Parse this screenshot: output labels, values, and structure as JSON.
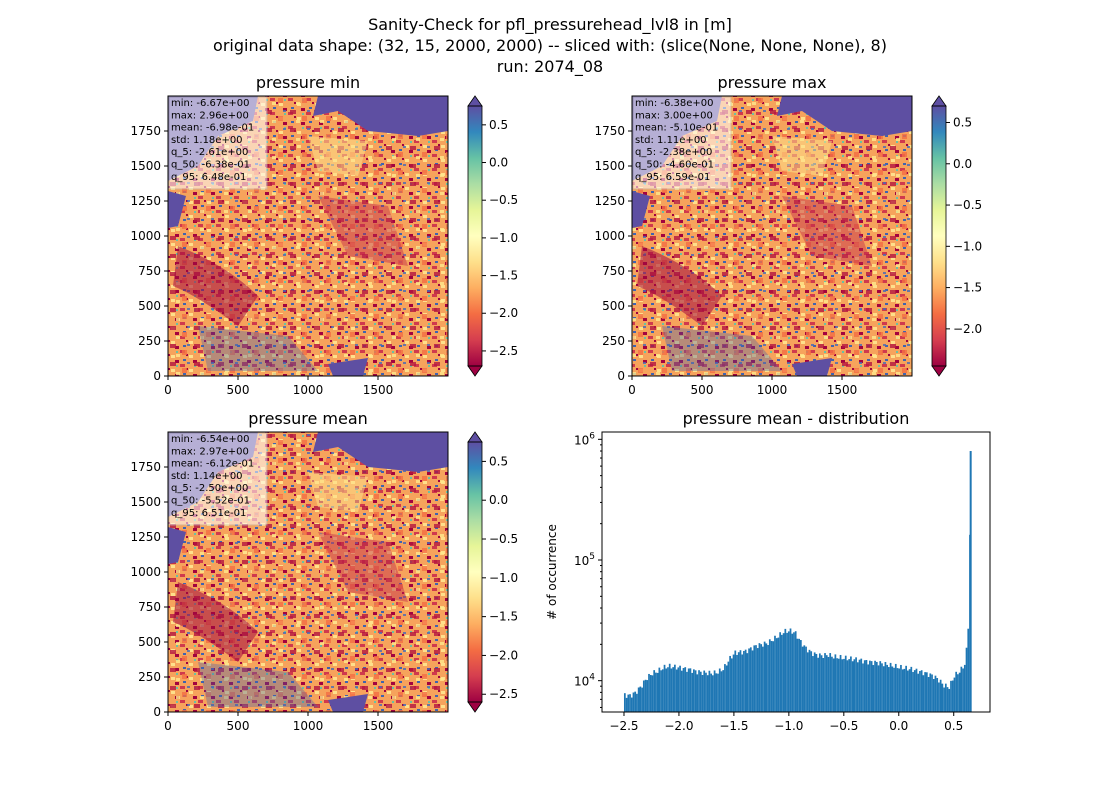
{
  "figure": {
    "title_line1": "Sanity-Check for pfl_pressurehead_lvl8 in [m]",
    "title_line2": "original data shape: (32, 15, 2000, 2000) -- sliced with: (slice(None, None, None), 8)",
    "title_line3": "run: 2074_08"
  },
  "chart_data": [
    {
      "type": "heatmap",
      "title": "pressure min",
      "xlim": [
        0,
        2000
      ],
      "ylim": [
        0,
        2000
      ],
      "xticks": [
        0,
        500,
        1000,
        1500
      ],
      "yticks": [
        0,
        250,
        500,
        750,
        1000,
        1250,
        1500,
        1750
      ],
      "colormap": "Spectral",
      "colorbar": {
        "range": [
          -2.7,
          0.75
        ],
        "ticks": [
          0.5,
          0.0,
          -0.5,
          -1.0,
          -1.5,
          -2.0,
          -2.5
        ],
        "tick_labels": [
          "0.5",
          "0.0",
          "−0.5",
          "−1.0",
          "−1.5",
          "−2.0",
          "−2.5"
        ]
      },
      "stats": [
        "min: -6.67e+00",
        "max: 2.96e+00",
        "mean: -6.98e-01",
        "std: 1.18e+00",
        "q_5: -2.61e+00",
        "q_50: -6.38e-01",
        "q_95: 6.48e-01"
      ]
    },
    {
      "type": "heatmap",
      "title": "pressure max",
      "xlim": [
        0,
        2000
      ],
      "ylim": [
        0,
        2000
      ],
      "xticks": [
        0,
        500,
        1000,
        1500
      ],
      "yticks": [
        0,
        250,
        500,
        750,
        1000,
        1250,
        1500,
        1750
      ],
      "colormap": "Spectral",
      "colorbar": {
        "range": [
          -2.45,
          0.7
        ],
        "ticks": [
          0.5,
          0.0,
          -0.5,
          -1.0,
          -1.5,
          -2.0
        ],
        "tick_labels": [
          "0.5",
          "0.0",
          "−0.5",
          "−1.0",
          "−1.5",
          "−2.0"
        ]
      },
      "stats": [
        "min: -6.38e+00",
        "max: 3.00e+00",
        "mean: -5.10e-01",
        "std: 1.11e+00",
        "q_5: -2.38e+00",
        "q_50: -4.60e-01",
        "q_95: 6.59e-01"
      ]
    },
    {
      "type": "heatmap",
      "title": "pressure mean",
      "xlim": [
        0,
        2000
      ],
      "ylim": [
        0,
        2000
      ],
      "xticks": [
        0,
        500,
        1000,
        1500
      ],
      "yticks": [
        0,
        250,
        500,
        750,
        1000,
        1250,
        1500,
        1750
      ],
      "colormap": "Spectral",
      "colorbar": {
        "range": [
          -2.6,
          0.75
        ],
        "ticks": [
          0.5,
          0.0,
          -0.5,
          -1.0,
          -1.5,
          -2.0,
          -2.5
        ],
        "tick_labels": [
          "0.5",
          "0.0",
          "−0.5",
          "−1.0",
          "−1.5",
          "−2.0",
          "−2.5"
        ]
      },
      "stats": [
        "min: -6.54e+00",
        "max: 2.97e+00",
        "mean: -6.12e-01",
        "std: 1.14e+00",
        "q_5: -2.50e+00",
        "q_50: -5.52e-01",
        "q_95: 6.51e-01"
      ]
    },
    {
      "type": "bar",
      "title": "pressure mean - distribution",
      "ylabel": "# of occurrence",
      "xlabel": "",
      "yscale": "log",
      "xlim": [
        -2.7,
        0.83
      ],
      "ylim": [
        5500,
        1150000
      ],
      "xticks": [
        -2.5,
        -2.0,
        -1.5,
        -1.0,
        -0.5,
        0.0,
        0.5
      ],
      "xtick_labels": [
        "−2.5",
        "−2.0",
        "−1.5",
        "−1.0",
        "−0.5",
        "0.0",
        "0.5"
      ],
      "yticks": [
        10000,
        100000,
        1000000
      ],
      "ytick_labels": [
        "10^4",
        "10^5",
        "10^6"
      ],
      "bar_color": "#1f77b4",
      "bin_width": 0.0157,
      "x": [
        -2.5,
        -2.45,
        -2.4,
        -2.35,
        -2.3,
        -2.25,
        -2.2,
        -2.15,
        -2.1,
        -2.05,
        -2.0,
        -1.95,
        -1.9,
        -1.85,
        -1.8,
        -1.75,
        -1.7,
        -1.65,
        -1.6,
        -1.55,
        -1.5,
        -1.45,
        -1.4,
        -1.35,
        -1.3,
        -1.25,
        -1.2,
        -1.15,
        -1.1,
        -1.05,
        -1.0,
        -0.95,
        -0.9,
        -0.85,
        -0.8,
        -0.75,
        -0.7,
        -0.65,
        -0.6,
        -0.55,
        -0.5,
        -0.45,
        -0.4,
        -0.35,
        -0.3,
        -0.25,
        -0.2,
        -0.15,
        -0.1,
        -0.05,
        0.0,
        0.05,
        0.1,
        0.15,
        0.2,
        0.25,
        0.3,
        0.35,
        0.4,
        0.45,
        0.5,
        0.55,
        0.6,
        0.63,
        0.65
      ],
      "values": [
        7600,
        7500,
        8000,
        9000,
        10500,
        11500,
        12000,
        12800,
        13200,
        13000,
        12800,
        12500,
        12300,
        11900,
        11700,
        11600,
        11500,
        11800,
        12600,
        15000,
        17000,
        17200,
        17500,
        18500,
        19500,
        20000,
        20500,
        22000,
        23500,
        25500,
        26000,
        25000,
        21000,
        18500,
        17000,
        16300,
        16100,
        16400,
        15800,
        15600,
        15400,
        15200,
        15000,
        14700,
        14400,
        14200,
        14100,
        13800,
        13500,
        13200,
        12900,
        12700,
        12500,
        12100,
        11800,
        11400,
        11000,
        10300,
        9200,
        8800,
        11000,
        12000,
        14000,
        33000,
        800000
      ]
    }
  ]
}
